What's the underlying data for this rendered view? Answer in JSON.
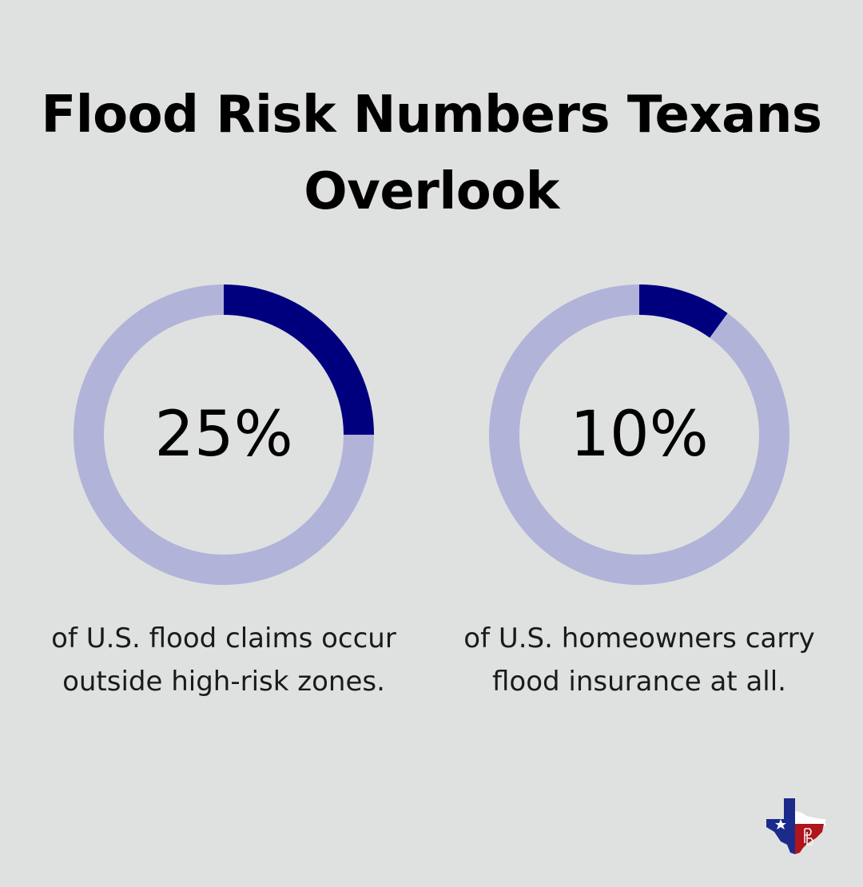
{
  "title": "Flood Risk Numbers Texans Overlook",
  "colors": {
    "background": "#dfe1e0",
    "ring_filled": "#00007f",
    "ring_track": "#b2b3d9"
  },
  "chart_data": [
    {
      "type": "pie",
      "subtype": "donut",
      "value": 25,
      "max": 100,
      "value_label": "25%",
      "caption": "of U.S. flood claims occur outside high-risk zones."
    },
    {
      "type": "pie",
      "subtype": "donut",
      "value": 10,
      "max": 100,
      "value_label": "10%",
      "caption": "of U.S. homeowners carry flood insurance at all."
    }
  ],
  "logo": {
    "icon": "texas-map-logo-icon"
  }
}
